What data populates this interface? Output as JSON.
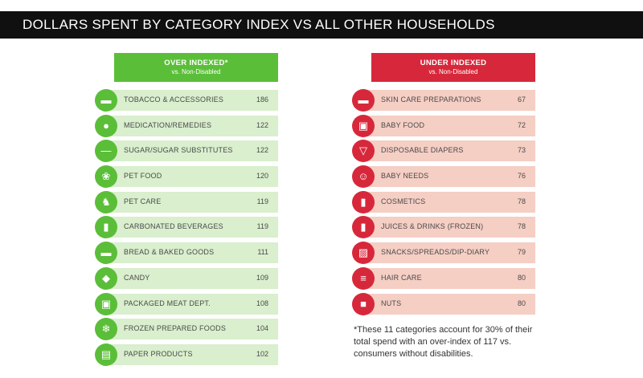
{
  "banner": {
    "title": "DOLLARS SPENT BY CATEGORY INDEX VS ALL OTHER HOUSEHOLDS"
  },
  "left_panel": {
    "title": "OVER INDEXED*",
    "subtitle": "vs. Non-Disabled"
  },
  "right_panel": {
    "title": "UNDER INDEXED",
    "subtitle": "vs. Non-Disabled"
  },
  "footnote": "*These 11 categories account for 30% of their total spend with an over-index of 117 vs. consumers without disabilities.",
  "colors": {
    "over": "#5bbe39",
    "over_band": "#d9efcd",
    "under": "#d7283b",
    "under_band": "#f5cec4",
    "banner": "#101010"
  },
  "chart_data": [
    {
      "type": "table",
      "title": "OVER INDEXED*",
      "subtitle": "vs. Non-Disabled",
      "categories": [
        "TOBACCO & ACCESSORIES",
        "MEDICATION/REMEDIES",
        "SUGAR/SUGAR SUBSTITUTES",
        "PET FOOD",
        "PET CARE",
        "CARBONATED BEVERAGES",
        "BREAD & BAKED GOODS",
        "CANDY",
        "PACKAGED MEAT DEPT.",
        "FROZEN PREPARED FOODS",
        "PAPER PRODUCTS"
      ],
      "values": [
        186,
        122,
        122,
        120,
        119,
        119,
        111,
        109,
        108,
        104,
        102
      ],
      "icons": [
        "cigarette-icon",
        "pills-icon",
        "spoon-icon",
        "paw-icon",
        "dog-icon",
        "can-icon",
        "bread-icon",
        "candy-icon",
        "meat-package-icon",
        "frozen-food-icon",
        "paper-towel-icon"
      ]
    },
    {
      "type": "table",
      "title": "UNDER INDEXED",
      "subtitle": "vs. Non-Disabled",
      "categories": [
        "SKIN CARE PREPARATIONS",
        "BABY FOOD",
        "DISPOSABLE DIAPERS",
        "BABY NEEDS",
        "COSMETICS",
        "JUICES & DRINKS (FROZEN)",
        "SNACKS/SPREADS/DIP-DIARY",
        "HAIR CARE",
        "NUTS"
      ],
      "values": [
        67,
        72,
        73,
        76,
        78,
        78,
        79,
        80,
        80
      ],
      "icons": [
        "lotion-jar-icon",
        "baby-food-icon",
        "diaper-icon",
        "baby-icon",
        "lipstick-icon",
        "juice-icon",
        "snack-icon",
        "comb-icon",
        "nuts-icon"
      ]
    }
  ]
}
